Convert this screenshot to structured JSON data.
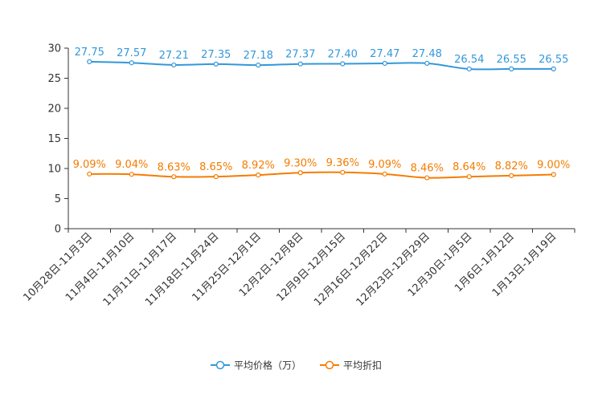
{
  "chart_data": {
    "type": "line",
    "title": "",
    "xlabel": "",
    "ylabel": "",
    "ylim": [
      0,
      30
    ],
    "y_ticks": [
      "0",
      "5",
      "10",
      "15",
      "20",
      "25",
      "30"
    ],
    "grid": false,
    "legend_position": "bottom",
    "categories": [
      "10月28日-11月3日",
      "11月4日-11月10日",
      "11月11日-11月17日",
      "11月18日-11月24日",
      "11月25日-12月1日",
      "12月2日-12月8日",
      "12月9日-12月15日",
      "12月16日-12月22日",
      "12月23日-12月29日",
      "12月30日-1月5日",
      "1月6日-1月12日",
      "1月13日-1月19日"
    ],
    "series": [
      {
        "name": "平均价格（万）",
        "color": "#3398DB",
        "values": [
          27.75,
          27.57,
          27.21,
          27.35,
          27.18,
          27.37,
          27.4,
          27.47,
          27.48,
          26.54,
          26.55,
          26.55
        ],
        "labels": [
          "27.75",
          "27.57",
          "27.21",
          "27.35",
          "27.18",
          "27.37",
          "27.40",
          "27.47",
          "27.48",
          "26.54",
          "26.55",
          "26.55"
        ]
      },
      {
        "name": "平均折扣",
        "color": "#F57C00",
        "values": [
          9.09,
          9.04,
          8.63,
          8.65,
          8.92,
          9.3,
          9.36,
          9.09,
          8.46,
          8.64,
          8.82,
          9.0
        ],
        "labels": [
          "9.09%",
          "9.04%",
          "8.63%",
          "8.65%",
          "8.92%",
          "9.30%",
          "9.36%",
          "9.09%",
          "8.46%",
          "8.64%",
          "8.82%",
          "9.00%"
        ]
      }
    ]
  }
}
